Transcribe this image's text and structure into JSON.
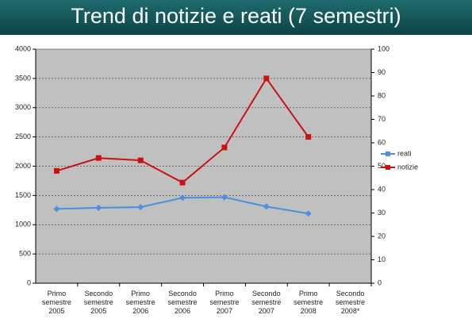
{
  "chart_data": {
    "type": "line",
    "title": "Trend di notizie e reati (7 semestri)",
    "categories": [
      "Primo semestre 2005",
      "Secondo semestre 2005",
      "Primo semestre 2006",
      "Secondo semestre 2006",
      "Primo semestre 2007",
      "Secondo semestre 2007",
      "Primo semestre 2008",
      "Secondo semestre 2008*"
    ],
    "series": [
      {
        "name": "reati",
        "color": "#4a8fe0",
        "values": [
          1270,
          1290,
          1300,
          1460,
          1470,
          1310,
          1190,
          null
        ]
      },
      {
        "name": "notizie",
        "color": "#cc1111",
        "axis": "y2",
        "values": [
          48,
          53.5,
          52.5,
          43,
          58,
          87.5,
          62.5,
          null
        ]
      }
    ],
    "ylim": [
      0,
      4000
    ],
    "yticks": [
      0,
      500,
      1000,
      1500,
      2000,
      2500,
      3000,
      3500,
      4000
    ],
    "y2lim": [
      0,
      100
    ],
    "y2ticks": [
      0,
      10,
      20,
      30,
      40,
      50,
      60,
      70,
      80,
      90,
      100
    ],
    "grid": true,
    "legend": "right"
  }
}
